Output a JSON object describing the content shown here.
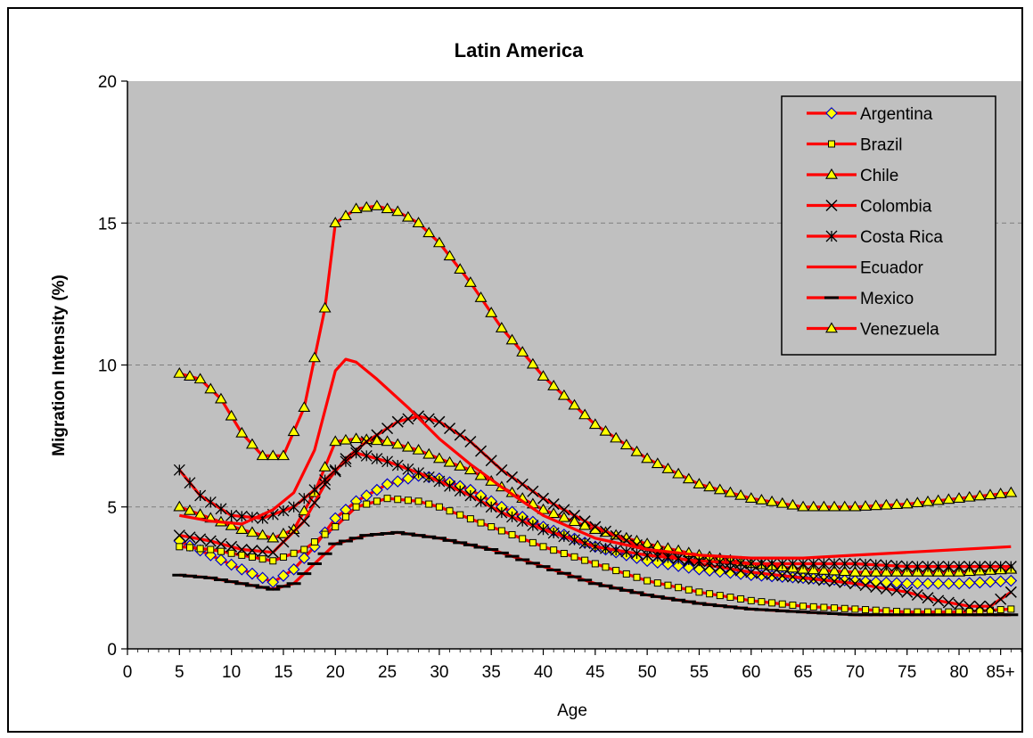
{
  "chart_data": {
    "type": "line",
    "title": "Latin America",
    "xlabel": "Age",
    "ylabel": "Migration Intensity (%)",
    "xlim": [
      0,
      86
    ],
    "ylim": [
      0,
      20
    ],
    "x_ticks": [
      {
        "value": 0,
        "label": "0"
      },
      {
        "value": 5,
        "label": "5"
      },
      {
        "value": 10,
        "label": "10"
      },
      {
        "value": 15,
        "label": "15"
      },
      {
        "value": 20,
        "label": "20"
      },
      {
        "value": 25,
        "label": "25"
      },
      {
        "value": 30,
        "label": "30"
      },
      {
        "value": 35,
        "label": "35"
      },
      {
        "value": 40,
        "label": "40"
      },
      {
        "value": 45,
        "label": "45"
      },
      {
        "value": 50,
        "label": "50"
      },
      {
        "value": 55,
        "label": "55"
      },
      {
        "value": 60,
        "label": "60"
      },
      {
        "value": 65,
        "label": "65"
      },
      {
        "value": 70,
        "label": "70"
      },
      {
        "value": 75,
        "label": "75"
      },
      {
        "value": 80,
        "label": "80"
      },
      {
        "value": 84,
        "label": "85+"
      }
    ],
    "y_ticks": [
      {
        "value": 0,
        "label": "0"
      },
      {
        "value": 5,
        "label": "5"
      },
      {
        "value": 10,
        "label": "10"
      },
      {
        "value": 15,
        "label": "15"
      },
      {
        "value": 20,
        "label": "20"
      }
    ],
    "grid": "horizontal-dashed",
    "legend_position": "top-right",
    "plot_background": "#c0c0c0",
    "line_color": "#ff0000",
    "series": [
      {
        "name": "Argentina",
        "marker": "diamond",
        "marker_fill": "#ffff00",
        "marker_stroke": "#0000cc",
        "points": [
          [
            5,
            3.8
          ],
          [
            8,
            3.3
          ],
          [
            11,
            2.8
          ],
          [
            14,
            2.35
          ],
          [
            16,
            2.8
          ],
          [
            18,
            3.6
          ],
          [
            20,
            4.6
          ],
          [
            22,
            5.2
          ],
          [
            25,
            5.8
          ],
          [
            28,
            6.1
          ],
          [
            30,
            6.0
          ],
          [
            33,
            5.6
          ],
          [
            36,
            5.0
          ],
          [
            40,
            4.3
          ],
          [
            45,
            3.6
          ],
          [
            50,
            3.1
          ],
          [
            55,
            2.8
          ],
          [
            60,
            2.6
          ],
          [
            65,
            2.5
          ],
          [
            70,
            2.4
          ],
          [
            75,
            2.3
          ],
          [
            80,
            2.3
          ],
          [
            85,
            2.4
          ]
        ]
      },
      {
        "name": "Brazil",
        "marker": "square",
        "marker_fill": "#ffff00",
        "marker_stroke": "#000000",
        "points": [
          [
            5,
            3.6
          ],
          [
            8,
            3.5
          ],
          [
            11,
            3.3
          ],
          [
            14,
            3.1
          ],
          [
            17,
            3.5
          ],
          [
            20,
            4.3
          ],
          [
            22,
            5.0
          ],
          [
            25,
            5.3
          ],
          [
            28,
            5.2
          ],
          [
            30,
            5.0
          ],
          [
            35,
            4.3
          ],
          [
            40,
            3.6
          ],
          [
            45,
            3.0
          ],
          [
            50,
            2.4
          ],
          [
            55,
            2.0
          ],
          [
            60,
            1.7
          ],
          [
            65,
            1.5
          ],
          [
            70,
            1.4
          ],
          [
            75,
            1.3
          ],
          [
            80,
            1.3
          ],
          [
            85,
            1.4
          ]
        ]
      },
      {
        "name": "Chile",
        "marker": "triangle",
        "marker_fill": "#ffff00",
        "marker_stroke": "#000000",
        "points": [
          [
            5,
            5.0
          ],
          [
            8,
            4.6
          ],
          [
            11,
            4.2
          ],
          [
            14,
            3.9
          ],
          [
            16,
            4.2
          ],
          [
            18,
            5.5
          ],
          [
            20,
            7.3
          ],
          [
            22,
            7.4
          ],
          [
            25,
            7.3
          ],
          [
            28,
            7.0
          ],
          [
            30,
            6.7
          ],
          [
            33,
            6.3
          ],
          [
            36,
            5.7
          ],
          [
            40,
            4.9
          ],
          [
            45,
            4.2
          ],
          [
            50,
            3.7
          ],
          [
            55,
            3.3
          ],
          [
            60,
            3.0
          ],
          [
            65,
            2.8
          ],
          [
            70,
            2.7
          ],
          [
            75,
            2.7
          ],
          [
            80,
            2.7
          ],
          [
            85,
            2.8
          ]
        ]
      },
      {
        "name": "Colombia",
        "marker": "x",
        "marker_fill": "#000000",
        "marker_stroke": "#000000",
        "points": [
          [
            5,
            4.0
          ],
          [
            8,
            3.8
          ],
          [
            11,
            3.5
          ],
          [
            14,
            3.4
          ],
          [
            17,
            4.5
          ],
          [
            19,
            5.8
          ],
          [
            21,
            6.7
          ],
          [
            23,
            7.3
          ],
          [
            26,
            8.0
          ],
          [
            28,
            8.2
          ],
          [
            30,
            8.0
          ],
          [
            33,
            7.3
          ],
          [
            36,
            6.3
          ],
          [
            40,
            5.3
          ],
          [
            45,
            4.3
          ],
          [
            50,
            3.5
          ],
          [
            55,
            3.0
          ],
          [
            60,
            2.7
          ],
          [
            65,
            2.5
          ],
          [
            70,
            2.3
          ],
          [
            75,
            2.0
          ],
          [
            78,
            1.7
          ],
          [
            81,
            1.5
          ],
          [
            83,
            1.5
          ],
          [
            85,
            2.0
          ]
        ]
      },
      {
        "name": "Costa Rica",
        "marker": "asterisk",
        "marker_fill": "#000000",
        "marker_stroke": "#000000",
        "points": [
          [
            5,
            6.3
          ],
          [
            7,
            5.4
          ],
          [
            10,
            4.7
          ],
          [
            13,
            4.6
          ],
          [
            16,
            5.0
          ],
          [
            18,
            5.6
          ],
          [
            20,
            6.3
          ],
          [
            22,
            6.9
          ],
          [
            25,
            6.6
          ],
          [
            28,
            6.2
          ],
          [
            30,
            5.9
          ],
          [
            33,
            5.4
          ],
          [
            36,
            4.8
          ],
          [
            40,
            4.2
          ],
          [
            45,
            3.6
          ],
          [
            50,
            3.3
          ],
          [
            55,
            3.1
          ],
          [
            60,
            3.0
          ],
          [
            65,
            3.0
          ],
          [
            70,
            3.0
          ],
          [
            75,
            2.9
          ],
          [
            80,
            2.9
          ],
          [
            85,
            2.9
          ]
        ]
      },
      {
        "name": "Ecuador",
        "marker": "none",
        "marker_fill": "#ff0000",
        "marker_stroke": "#ff0000",
        "points": [
          [
            5,
            4.7
          ],
          [
            8,
            4.5
          ],
          [
            11,
            4.4
          ],
          [
            14,
            4.9
          ],
          [
            16,
            5.5
          ],
          [
            18,
            7.0
          ],
          [
            20,
            9.8
          ],
          [
            21,
            10.2
          ],
          [
            22,
            10.1
          ],
          [
            24,
            9.5
          ],
          [
            27,
            8.5
          ],
          [
            30,
            7.4
          ],
          [
            33,
            6.5
          ],
          [
            36,
            5.7
          ],
          [
            40,
            4.7
          ],
          [
            45,
            3.9
          ],
          [
            50,
            3.5
          ],
          [
            55,
            3.3
          ],
          [
            60,
            3.2
          ],
          [
            65,
            3.2
          ],
          [
            70,
            3.3
          ],
          [
            75,
            3.4
          ],
          [
            80,
            3.5
          ],
          [
            85,
            3.6
          ]
        ]
      },
      {
        "name": "Mexico",
        "marker": "dash",
        "marker_fill": "#000000",
        "marker_stroke": "#000000",
        "points": [
          [
            5,
            2.6
          ],
          [
            8,
            2.5
          ],
          [
            11,
            2.3
          ],
          [
            14,
            2.1
          ],
          [
            16,
            2.3
          ],
          [
            18,
            3.0
          ],
          [
            20,
            3.7
          ],
          [
            23,
            4.0
          ],
          [
            26,
            4.1
          ],
          [
            28,
            4.0
          ],
          [
            30,
            3.9
          ],
          [
            35,
            3.5
          ],
          [
            40,
            2.9
          ],
          [
            45,
            2.3
          ],
          [
            50,
            1.9
          ],
          [
            55,
            1.6
          ],
          [
            60,
            1.4
          ],
          [
            65,
            1.3
          ],
          [
            70,
            1.2
          ],
          [
            75,
            1.2
          ],
          [
            80,
            1.2
          ],
          [
            85,
            1.2
          ]
        ]
      },
      {
        "name": "Venezuela",
        "marker": "triangle",
        "marker_fill": "#ffff00",
        "marker_stroke": "#000000",
        "points": [
          [
            5,
            9.7
          ],
          [
            7,
            9.5
          ],
          [
            9,
            8.8
          ],
          [
            11,
            7.6
          ],
          [
            13,
            6.8
          ],
          [
            15,
            6.8
          ],
          [
            17,
            8.5
          ],
          [
            19,
            12.0
          ],
          [
            20,
            15.0
          ],
          [
            22,
            15.5
          ],
          [
            24,
            15.6
          ],
          [
            26,
            15.4
          ],
          [
            28,
            15.0
          ],
          [
            30,
            14.3
          ],
          [
            33,
            12.9
          ],
          [
            36,
            11.3
          ],
          [
            40,
            9.6
          ],
          [
            45,
            7.9
          ],
          [
            50,
            6.7
          ],
          [
            55,
            5.8
          ],
          [
            60,
            5.3
          ],
          [
            65,
            5.0
          ],
          [
            70,
            5.0
          ],
          [
            75,
            5.1
          ],
          [
            80,
            5.3
          ],
          [
            85,
            5.5
          ]
        ]
      }
    ]
  }
}
